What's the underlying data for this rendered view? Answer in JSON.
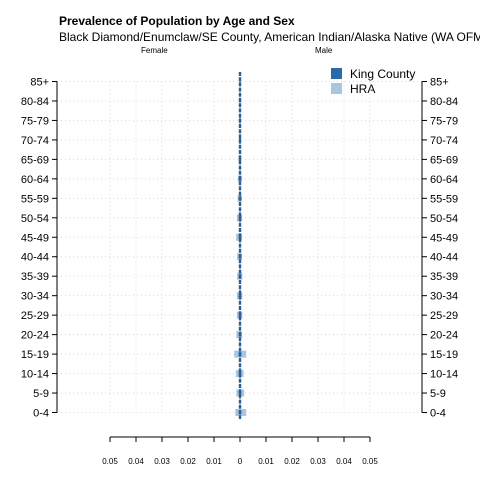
{
  "chart_data": {
    "type": "bar",
    "title": "Prevalence of Population by Age and Sex",
    "subtitle": "Black Diamond/Enumclaw/SE County, American Indian/Alaska Native (WA OFM",
    "left_label": "Female",
    "right_label": "Male",
    "categories": [
      "0-4",
      "5-9",
      "10-14",
      "15-19",
      "20-24",
      "25-29",
      "30-34",
      "35-39",
      "40-44",
      "45-49",
      "50-54",
      "55-59",
      "60-64",
      "65-69",
      "70-74",
      "75-79",
      "80-84",
      "85+"
    ],
    "x_ticks": [
      "0.05",
      "0.04",
      "0.03",
      "0.02",
      "0.01",
      "0",
      "0.01",
      "0.02",
      "0.03",
      "0.04",
      "0.05"
    ],
    "xlim": [
      -0.05,
      0.05
    ],
    "grid": true,
    "legend_position": "top-right",
    "series": [
      {
        "name": "HRA",
        "color": "#a9c6de",
        "female": [
          0.0018,
          0.0014,
          0.0016,
          0.0022,
          0.0014,
          0.0012,
          0.0012,
          0.0011,
          0.0011,
          0.0015,
          0.0012,
          0.0009,
          0.0008,
          0.0006,
          0.0004,
          0.0003,
          0.0002,
          0.0002
        ],
        "male": [
          0.0024,
          0.0016,
          0.0014,
          0.0024,
          0.0008,
          0.0009,
          0.0009,
          0.0009,
          0.0008,
          0.0008,
          0.0008,
          0.0007,
          0.0007,
          0.0005,
          0.0004,
          0.0003,
          0.0002,
          0.0002
        ]
      },
      {
        "name": "King County",
        "color": "#2b6aa6",
        "female": [
          0.0005,
          0.0005,
          0.0005,
          0.0005,
          0.0005,
          0.0005,
          0.0005,
          0.0005,
          0.0005,
          0.0005,
          0.0005,
          0.0005,
          0.0005,
          0.0004,
          0.0004,
          0.0003,
          0.0002,
          0.0002
        ],
        "male": [
          0.0005,
          0.0005,
          0.0005,
          0.0005,
          0.0005,
          0.0005,
          0.0005,
          0.0005,
          0.0005,
          0.0005,
          0.0005,
          0.0005,
          0.0005,
          0.0004,
          0.0004,
          0.0003,
          0.0002,
          0.0002
        ]
      }
    ],
    "legend": [
      {
        "label": "King County",
        "color": "#2b6aa6"
      },
      {
        "label": "HRA",
        "color": "#a9c6de"
      }
    ]
  }
}
